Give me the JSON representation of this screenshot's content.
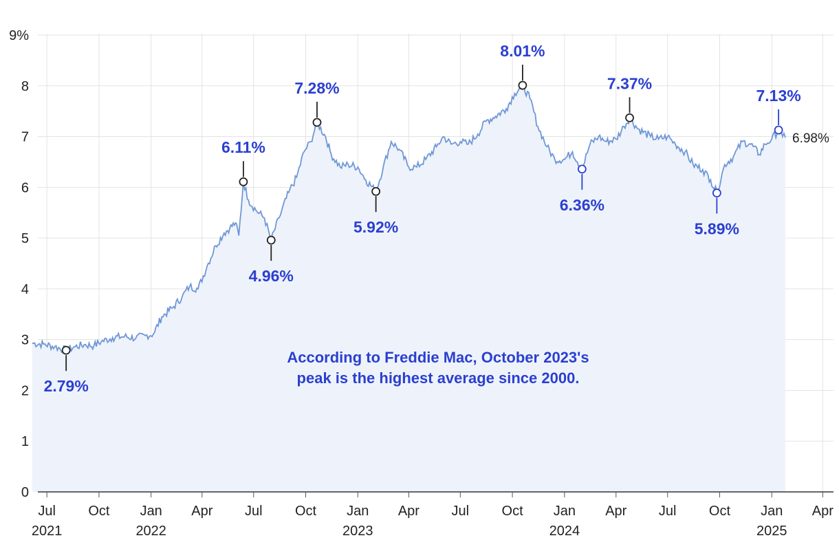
{
  "chart_data": {
    "type": "line",
    "title": "",
    "xlabel": "",
    "ylabel": "",
    "ylim": [
      0,
      9
    ],
    "y_ticks": [
      {
        "value": 9,
        "label": "9%"
      },
      {
        "value": 8,
        "label": "8"
      },
      {
        "value": 7,
        "label": "7"
      },
      {
        "value": 6,
        "label": "6"
      },
      {
        "value": 5,
        "label": "5"
      },
      {
        "value": 4,
        "label": "4"
      },
      {
        "value": 3,
        "label": "3"
      },
      {
        "value": 2,
        "label": "2"
      },
      {
        "value": 1,
        "label": "1"
      },
      {
        "value": 0,
        "label": "0"
      }
    ],
    "x_ticks": [
      {
        "date": "2021-07-01",
        "label": "Jul",
        "year": "2021"
      },
      {
        "date": "2021-10-01",
        "label": "Oct",
        "year": ""
      },
      {
        "date": "2022-01-01",
        "label": "Jan",
        "year": "2022"
      },
      {
        "date": "2022-04-01",
        "label": "Apr",
        "year": ""
      },
      {
        "date": "2022-07-01",
        "label": "Jul",
        "year": ""
      },
      {
        "date": "2022-10-01",
        "label": "Oct",
        "year": ""
      },
      {
        "date": "2023-01-01",
        "label": "Jan",
        "year": "2023"
      },
      {
        "date": "2023-04-01",
        "label": "Apr",
        "year": ""
      },
      {
        "date": "2023-07-01",
        "label": "Jul",
        "year": ""
      },
      {
        "date": "2023-10-01",
        "label": "Oct",
        "year": ""
      },
      {
        "date": "2024-01-01",
        "label": "Jan",
        "year": "2024"
      },
      {
        "date": "2024-04-01",
        "label": "Apr",
        "year": ""
      },
      {
        "date": "2024-07-01",
        "label": "Jul",
        "year": ""
      },
      {
        "date": "2024-10-01",
        "label": "Oct",
        "year": ""
      },
      {
        "date": "2025-01-01",
        "label": "Jan",
        "year": "2025"
      },
      {
        "date": "2025-04-01",
        "label": "Apr",
        "year": ""
      }
    ],
    "xlim": [
      "2021-06-15",
      "2025-04-20"
    ],
    "grid": true,
    "series": [
      {
        "color": "#6f97d6",
        "fill": "#eef3fb",
        "points": [
          [
            "2021-06-05",
            2.93
          ],
          [
            "2021-06-25",
            2.91
          ],
          [
            "2021-07-15",
            2.86
          ],
          [
            "2021-08-04",
            2.79
          ],
          [
            "2021-08-20",
            2.86
          ],
          [
            "2021-09-05",
            2.9
          ],
          [
            "2021-09-22",
            2.88
          ],
          [
            "2021-10-05",
            2.96
          ],
          [
            "2021-10-25",
            3.04
          ],
          [
            "2021-11-15",
            3.06
          ],
          [
            "2021-12-05",
            3.03
          ],
          [
            "2021-12-22",
            3.08
          ],
          [
            "2022-01-05",
            3.11
          ],
          [
            "2022-01-20",
            3.45
          ],
          [
            "2022-02-10",
            3.65
          ],
          [
            "2022-02-25",
            3.85
          ],
          [
            "2022-03-10",
            4.05
          ],
          [
            "2022-03-25",
            4.0
          ],
          [
            "2022-04-10",
            4.45
          ],
          [
            "2022-04-25",
            4.85
          ],
          [
            "2022-05-10",
            5.1
          ],
          [
            "2022-05-20",
            5.2
          ],
          [
            "2022-05-30",
            5.3
          ],
          [
            "2022-06-05",
            5.05
          ],
          [
            "2022-06-13",
            6.11
          ],
          [
            "2022-06-22",
            5.75
          ],
          [
            "2022-07-05",
            5.55
          ],
          [
            "2022-07-20",
            5.4
          ],
          [
            "2022-08-01",
            4.96
          ],
          [
            "2022-08-15",
            5.4
          ],
          [
            "2022-09-01",
            5.9
          ],
          [
            "2022-09-15",
            6.2
          ],
          [
            "2022-09-28",
            6.7
          ],
          [
            "2022-10-10",
            6.9
          ],
          [
            "2022-10-21",
            7.28
          ],
          [
            "2022-11-05",
            7.0
          ],
          [
            "2022-11-15",
            6.65
          ],
          [
            "2022-12-01",
            6.4
          ],
          [
            "2022-12-15",
            6.45
          ],
          [
            "2023-01-01",
            6.4
          ],
          [
            "2023-01-15",
            6.15
          ],
          [
            "2023-02-02",
            5.92
          ],
          [
            "2023-02-15",
            6.4
          ],
          [
            "2023-03-01",
            6.9
          ],
          [
            "2023-03-15",
            6.75
          ],
          [
            "2023-04-01",
            6.4
          ],
          [
            "2023-04-15",
            6.4
          ],
          [
            "2023-05-01",
            6.55
          ],
          [
            "2023-05-20",
            6.8
          ],
          [
            "2023-06-01",
            7.0
          ],
          [
            "2023-06-15",
            6.85
          ],
          [
            "2023-07-01",
            6.9
          ],
          [
            "2023-07-15",
            6.85
          ],
          [
            "2023-08-01",
            7.05
          ],
          [
            "2023-08-15",
            7.3
          ],
          [
            "2023-09-01",
            7.4
          ],
          [
            "2023-09-20",
            7.55
          ],
          [
            "2023-10-05",
            7.85
          ],
          [
            "2023-10-19",
            8.01
          ],
          [
            "2023-11-01",
            7.75
          ],
          [
            "2023-11-15",
            7.2
          ],
          [
            "2023-12-01",
            6.8
          ],
          [
            "2023-12-15",
            6.55
          ],
          [
            "2024-01-01",
            6.55
          ],
          [
            "2024-01-15",
            6.7
          ],
          [
            "2024-02-01",
            6.36
          ],
          [
            "2024-02-15",
            6.85
          ],
          [
            "2024-03-01",
            7.0
          ],
          [
            "2024-03-15",
            6.9
          ],
          [
            "2024-04-01",
            6.95
          ],
          [
            "2024-04-15",
            7.2
          ],
          [
            "2024-04-25",
            7.37
          ],
          [
            "2024-05-10",
            7.15
          ],
          [
            "2024-06-01",
            7.0
          ],
          [
            "2024-06-15",
            6.95
          ],
          [
            "2024-07-01",
            7.0
          ],
          [
            "2024-07-15",
            6.85
          ],
          [
            "2024-08-01",
            6.7
          ],
          [
            "2024-08-15",
            6.45
          ],
          [
            "2024-09-01",
            6.35
          ],
          [
            "2024-09-15",
            6.15
          ],
          [
            "2024-09-26",
            5.89
          ],
          [
            "2024-10-10",
            6.45
          ],
          [
            "2024-10-25",
            6.6
          ],
          [
            "2024-11-10",
            6.9
          ],
          [
            "2024-11-25",
            6.85
          ],
          [
            "2024-12-10",
            6.65
          ],
          [
            "2024-12-20",
            6.85
          ],
          [
            "2025-01-01",
            6.95
          ],
          [
            "2025-01-13",
            7.13
          ],
          [
            "2025-01-20",
            7.0
          ],
          [
            "2025-01-25",
            6.98
          ]
        ]
      }
    ],
    "annotations": [
      {
        "date": "2021-08-04",
        "value": 2.79,
        "label": "2.79%",
        "position": "below",
        "color": "#2b3fd0",
        "marker_color": "#222222"
      },
      {
        "date": "2022-06-13",
        "value": 6.11,
        "label": "6.11%",
        "position": "above",
        "color": "#2b3fd0",
        "marker_color": "#222222"
      },
      {
        "date": "2022-08-01",
        "value": 4.96,
        "label": "4.96%",
        "position": "below",
        "color": "#2b3fd0",
        "marker_color": "#222222"
      },
      {
        "date": "2022-10-21",
        "value": 7.28,
        "label": "7.28%",
        "position": "above",
        "color": "#2b3fd0",
        "marker_color": "#222222"
      },
      {
        "date": "2023-02-02",
        "value": 5.92,
        "label": "5.92%",
        "position": "below",
        "color": "#2b3fd0",
        "marker_color": "#222222"
      },
      {
        "date": "2023-10-19",
        "value": 8.01,
        "label": "8.01%",
        "position": "above",
        "color": "#2b3fd0",
        "marker_color": "#222222"
      },
      {
        "date": "2024-02-01",
        "value": 6.36,
        "label": "6.36%",
        "position": "below",
        "color": "#2b3fd0",
        "marker_color": "#2b3fd0"
      },
      {
        "date": "2024-04-25",
        "value": 7.37,
        "label": "7.37%",
        "position": "above",
        "color": "#2b3fd0",
        "marker_color": "#222222"
      },
      {
        "date": "2024-09-26",
        "value": 5.89,
        "label": "5.89%",
        "position": "below",
        "color": "#2b3fd0",
        "marker_color": "#2b3fd0"
      },
      {
        "date": "2025-01-13",
        "value": 7.13,
        "label": "7.13%",
        "position": "above",
        "color": "#2b3fd0",
        "marker_color": "#2b3fd0"
      }
    ],
    "end_label": {
      "date": "2025-01-25",
      "value": 6.98,
      "label": "6.98%"
    },
    "note": {
      "lines": [
        "According to Freddie Mac, October 2023's",
        "peak is the highest average since 2000."
      ],
      "color": "#2b3fd0"
    }
  }
}
